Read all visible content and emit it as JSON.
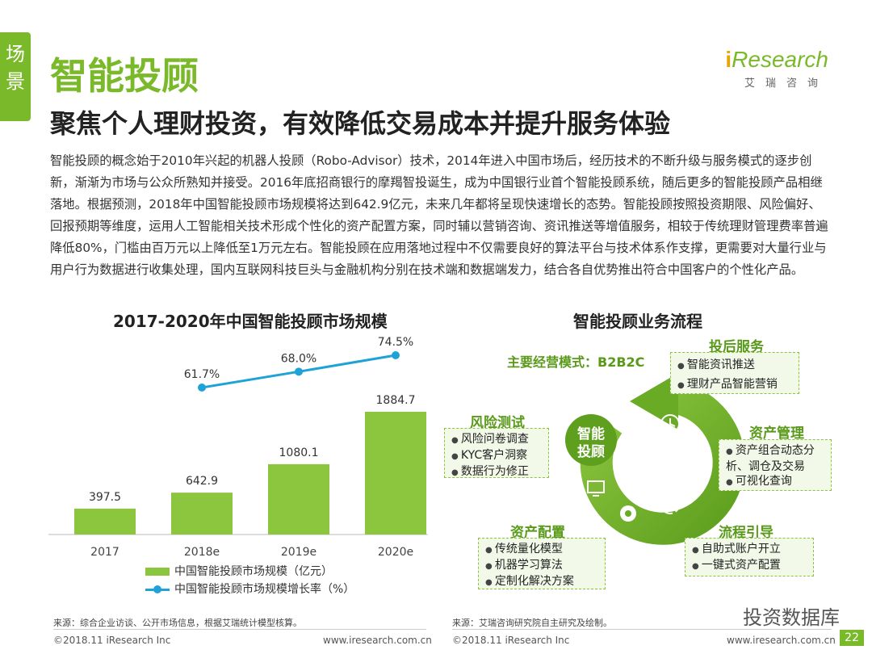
{
  "side_tab": "场\n景",
  "page_title": "智能投顾",
  "logo": {
    "mark_i": "i",
    "mark_text": "Research",
    "sub": "艾瑞咨询"
  },
  "subtitle": "聚焦个人理财投资，有效降低交易成本并提升服务体验",
  "body": "智能投顾的概念始于2010年兴起的机器人投顾（Robo-Advisor）技术，2014年进入中国市场后，经历技术的不断升级与服务模式的逐步创新，渐渐为市场与公众所熟知并接受。2016年底招商银行的摩羯智投诞生，成为中国银行业首个智能投顾系统，随后更多的智能投顾产品相继落地。根据预测，2018年中国智能投顾市场规模将达到642.9亿元，未来几年都将呈现快速增长的态势。智能投顾按照投资期限、风险偏好、回报预期等维度，运用人工智能相关技术形成个性化的资产配置方案，同时辅以营销咨询、资讯推送等增值服务，相较于传统理财管理费率普遍降低80%，门槛由百万元以上降低至1万元左右。智能投顾在应用落地过程中不仅需要良好的算法平台与技术体系作支撑，更需要对大量行业与用户行为数据进行收集处理，国内互联网科技巨头与金融机构分别在技术端和数据端发力，结合各自优势推出符合中国客户的个性化产品。",
  "chart_title": "2017-2020年中国智能投顾市场规模",
  "chart_data": {
    "type": "bar",
    "categories": [
      "2017",
      "2018e",
      "2019e",
      "2020e"
    ],
    "series": [
      {
        "name": "中国智能投顾市场规模（亿元）",
        "values": [
          397.5,
          642.9,
          1080.1,
          1884.7
        ],
        "labels": [
          "397.5",
          "642.9",
          "1080.1",
          "1884.7"
        ],
        "color": "#8cc63f"
      },
      {
        "name": "中国智能投顾市场规模增长率（%）",
        "type": "line",
        "values": [
          null,
          61.7,
          68.0,
          74.5
        ],
        "labels": [
          "",
          "61.7%",
          "68.0%",
          "74.5%"
        ],
        "color": "#1fa2d8"
      }
    ]
  },
  "legend": {
    "bar": "中国智能投顾市场规模（亿元）",
    "line": "中国智能投顾市场规模增长率（%）"
  },
  "flow_title": "智能投顾业务流程",
  "flow": {
    "mode": "主要经营模式：B2B2C",
    "center": "智能投顾",
    "center_24h": "24h",
    "boxes": {
      "post": {
        "title": "投后服务",
        "items": [
          "智能资讯推送",
          "理财产品智能营销"
        ]
      },
      "risk": {
        "title": "风险测试",
        "items": [
          "风险问卷调查",
          "KYC客户洞察",
          "数据行为修正"
        ]
      },
      "asset_mgmt": {
        "title": "资产管理",
        "items": [
          "资产组合动态分析、调仓及交易",
          "可视化查询"
        ]
      },
      "allocation": {
        "title": "资产配置",
        "items": [
          "传统量化模型",
          "机器学习算法",
          "定制化解决方案"
        ]
      },
      "guide": {
        "title": "流程引导",
        "items": [
          "自助式账户开立",
          "一键式资产配置"
        ]
      }
    }
  },
  "footer": {
    "source_left": "来源：综合企业访谈、公开市场信息，根据艾瑞统计模型核算。",
    "source_right": "来源：艾瑞咨询研究院自主研究及绘制。",
    "left": "©2018.11 iResearch Inc",
    "left_url": "www.iresearch.com.cn",
    "right": "©2018.11 iResearch Inc",
    "right_url": "www.iresearch.com.cn",
    "page": "22",
    "watermark": "投资数据库"
  },
  "colors": {
    "brand": "#7ab929",
    "bar": "#8cc63f",
    "line": "#1fa2d8"
  }
}
